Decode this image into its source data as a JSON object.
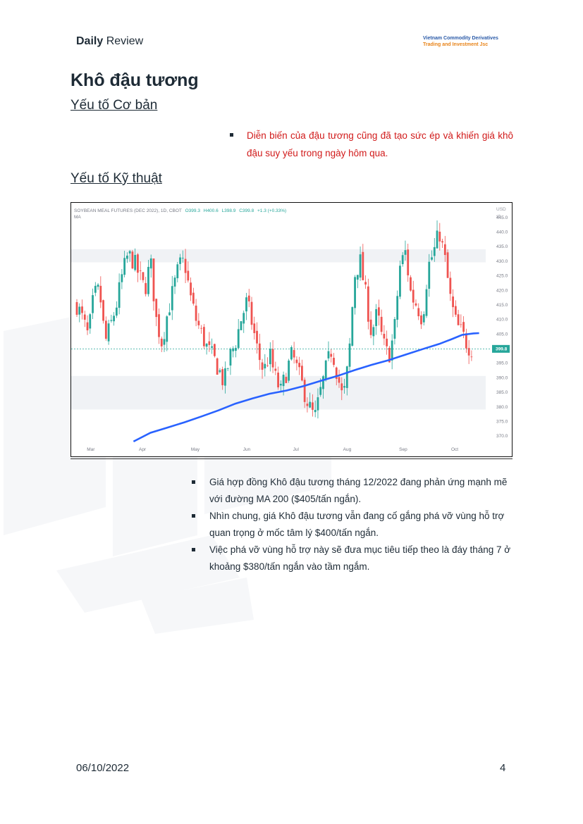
{
  "header": {
    "brand_bold": "Daily",
    "brand_rest": " Review",
    "company_line1": "Vietnam Commodity Derivatives",
    "company_line2": "Trading and Investment Jsc",
    "company_line1_color": "#2a5aa8",
    "company_line2_color": "#e8841a"
  },
  "page_title": "Khô đậu tương",
  "fundamental": {
    "heading": "Yếu tố Cơ bản",
    "bullets": [
      "Diễn biến của đậu tương cũng đã tạo sức ép và khiến giá khô đậu suy yếu trong ngày hôm qua."
    ],
    "text_color": "#d11a1a"
  },
  "technical": {
    "heading": "Yếu tố Kỹ thuật",
    "bullets": [
      "Giá hợp đồng Khô đậu tương tháng 12/2022 đang phản ứng mạnh mẽ với đường MA 200 ($405/tấn ngắn).",
      "Nhìn chung, giá Khô đậu tương vẫn đang cố gắng phá vỡ vùng hỗ trợ quan trọng ở mốc tâm lý $400/tấn ngắn.",
      "Việc phá vỡ vùng hỗ trợ này sẽ đưa mục tiêu tiếp theo là đáy tháng 7 ở khoảng $380/tấn ngắn vào tầm ngắm."
    ]
  },
  "chart_data": {
    "type": "candlestick",
    "symbol_line": "SOYBEAN MEAL FUTURES (DEC 2022), 1D, CBOT",
    "ohlc_label": {
      "o": "O399.3",
      "h": "H400.6",
      "l": "L398.9",
      "c": "C399.8",
      "chg": "+1.3 (+0.33%)"
    },
    "indicator_label": "MA",
    "currency": "USD",
    "unit": "sh",
    "last_price_label": "399.8",
    "last_price": 399.8,
    "ylim": [
      367.5,
      447.5
    ],
    "y_ticks": [
      "445.0",
      "440.0",
      "435.0",
      "430.0",
      "425.0",
      "420.0",
      "415.0",
      "410.0",
      "405.0",
      "400.0",
      "395.0",
      "390.0",
      "385.0",
      "380.0",
      "375.0",
      "370.0"
    ],
    "x_ticks": [
      "Mar",
      "Apr",
      "May",
      "Jun",
      "Jul",
      "Aug",
      "Sep",
      "Oct"
    ],
    "zones": [
      [
        429.5,
        434.0
      ],
      [
        379.0,
        390.5
      ]
    ],
    "up_color": "#26a69a",
    "down_color": "#ef5350",
    "ma_color": "#2962ff",
    "close_path": [
      [
        0,
        415
      ],
      [
        6,
        410
      ],
      [
        12,
        404
      ],
      [
        18,
        418
      ],
      [
        24,
        420
      ],
      [
        30,
        402
      ],
      [
        36,
        408
      ],
      [
        42,
        415
      ],
      [
        48,
        425
      ],
      [
        54,
        432
      ],
      [
        60,
        430
      ],
      [
        66,
        425
      ],
      [
        72,
        420
      ],
      [
        78,
        430
      ],
      [
        84,
        410
      ],
      [
        90,
        402
      ],
      [
        96,
        412
      ],
      [
        102,
        420
      ],
      [
        108,
        428
      ],
      [
        114,
        430
      ],
      [
        120,
        418
      ],
      [
        126,
        410
      ],
      [
        132,
        405
      ],
      [
        138,
        400
      ],
      [
        144,
        397
      ],
      [
        150,
        393
      ],
      [
        156,
        388
      ],
      [
        162,
        397
      ],
      [
        168,
        402
      ],
      [
        174,
        410
      ],
      [
        180,
        416
      ],
      [
        186,
        408
      ],
      [
        192,
        398
      ],
      [
        198,
        392
      ],
      [
        204,
        398
      ],
      [
        210,
        390
      ],
      [
        216,
        385
      ],
      [
        222,
        392
      ],
      [
        228,
        398
      ],
      [
        234,
        392
      ],
      [
        240,
        386
      ],
      [
        246,
        380
      ],
      [
        252,
        376
      ],
      [
        258,
        385
      ],
      [
        264,
        393
      ],
      [
        270,
        400
      ],
      [
        276,
        391
      ],
      [
        282,
        382
      ],
      [
        288,
        396
      ],
      [
        294,
        425
      ],
      [
        300,
        430
      ],
      [
        306,
        418
      ],
      [
        312,
        405
      ],
      [
        318,
        412
      ],
      [
        324,
        402
      ],
      [
        330,
        397
      ],
      [
        336,
        405
      ],
      [
        342,
        428
      ],
      [
        348,
        433
      ],
      [
        354,
        418
      ],
      [
        360,
        415
      ],
      [
        366,
        410
      ],
      [
        372,
        428
      ],
      [
        378,
        433
      ],
      [
        384,
        440
      ],
      [
        390,
        430
      ],
      [
        396,
        416
      ],
      [
        402,
        408
      ],
      [
        408,
        405
      ],
      [
        414,
        401
      ],
      [
        418,
        400
      ]
    ],
    "ma_path": [
      [
        60,
        368
      ],
      [
        78,
        371
      ],
      [
        96,
        372.8
      ],
      [
        114,
        374.6
      ],
      [
        132,
        376.6
      ],
      [
        150,
        378.7
      ],
      [
        168,
        381
      ],
      [
        186,
        382.8
      ],
      [
        204,
        384.4
      ],
      [
        222,
        385.5
      ],
      [
        240,
        387
      ],
      [
        258,
        388.8
      ],
      [
        276,
        390.5
      ],
      [
        294,
        392.5
      ],
      [
        312,
        394.3
      ],
      [
        330,
        395.9
      ],
      [
        348,
        397.8
      ],
      [
        366,
        399.7
      ],
      [
        384,
        401.5
      ],
      [
        396,
        403
      ],
      [
        408,
        404.6
      ],
      [
        420,
        405.1
      ],
      [
        426,
        405.2
      ]
    ]
  },
  "footer": {
    "date": "06/10/2022",
    "page_number": "4"
  }
}
